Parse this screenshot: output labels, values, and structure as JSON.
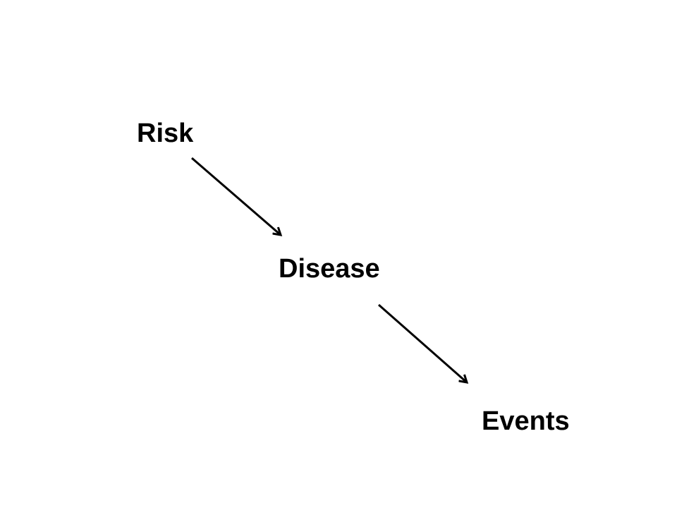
{
  "diagram": {
    "nodes": [
      {
        "id": "risk",
        "label": "Risk"
      },
      {
        "id": "disease",
        "label": "Disease"
      },
      {
        "id": "events",
        "label": "Events"
      }
    ],
    "edges": [
      {
        "from": "risk",
        "to": "disease"
      },
      {
        "from": "disease",
        "to": "events"
      }
    ],
    "colors": {
      "background": "#ffffff",
      "text": "#000000",
      "arrow": "#000000"
    }
  }
}
